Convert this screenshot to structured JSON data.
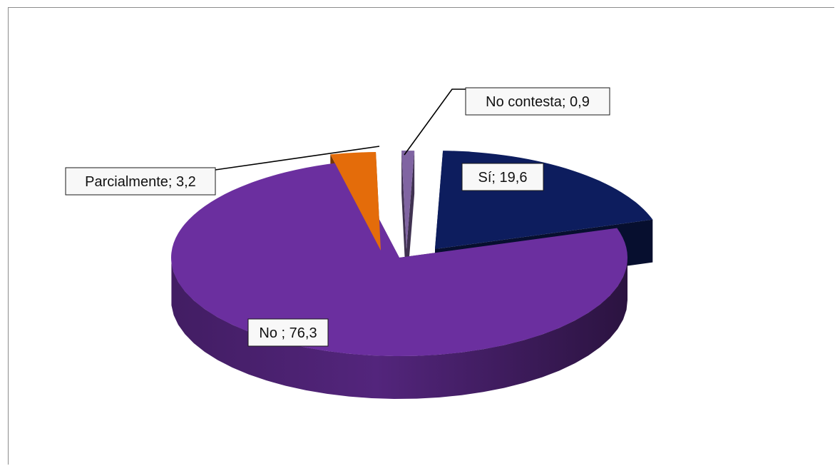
{
  "chart_data": {
    "type": "pie",
    "title": "",
    "style": "3d-exploded",
    "legend": "none",
    "slices": [
      {
        "label": "Sí; 19,6",
        "category": "Sí",
        "value": 19.6,
        "color": "#0d1d5e"
      },
      {
        "label": "No ; 76,3",
        "category": "No",
        "value": 76.3,
        "color": "#6b2f9f"
      },
      {
        "label": "Parcialmente; 3,2",
        "category": "Parcialmente",
        "value": 3.2,
        "color": "#e46c0a"
      },
      {
        "label": "No contesta; 0,9",
        "category": "No contesta",
        "value": 0.9,
        "color": "#8064a2"
      }
    ]
  }
}
